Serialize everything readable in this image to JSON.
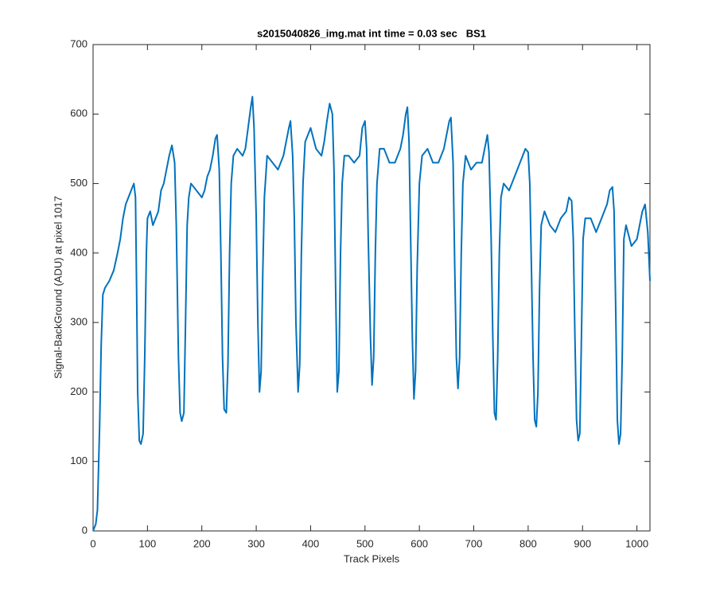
{
  "chart_data": {
    "type": "line",
    "title": "s2015040826_img.mat int time = 0.03 sec   BS1",
    "x_label": "Track Pixels",
    "y_label": "Signal-BackGround (ADU) at pixel 1017",
    "xlim": [
      0,
      1024
    ],
    "ylim": [
      0,
      700
    ],
    "xticks": [
      0,
      100,
      200,
      300,
      400,
      500,
      600,
      700,
      800,
      900,
      1000
    ],
    "yticks": [
      0,
      100,
      200,
      300,
      400,
      500,
      600,
      700
    ],
    "grid": false,
    "series": [
      {
        "name": "signal",
        "color": "#0072bd",
        "x": [
          0,
          5,
          8,
          12,
          15,
          18,
          22,
          30,
          38,
          45,
          50,
          55,
          60,
          65,
          70,
          75,
          78,
          80,
          82,
          85,
          88,
          92,
          95,
          98,
          100,
          105,
          110,
          115,
          120,
          125,
          130,
          135,
          140,
          145,
          150,
          153,
          157,
          160,
          163,
          167,
          170,
          173,
          176,
          180,
          190,
          200,
          205,
          210,
          215,
          220,
          225,
          228,
          232,
          235,
          238,
          241,
          245,
          248,
          251,
          254,
          258,
          265,
          275,
          280,
          285,
          290,
          293,
          296,
          300,
          303,
          306,
          309,
          312,
          315,
          320,
          330,
          340,
          350,
          355,
          360,
          363,
          367,
          370,
          373,
          377,
          380,
          383,
          386,
          390,
          400,
          410,
          420,
          425,
          430,
          435,
          440,
          443,
          446,
          449,
          452,
          455,
          458,
          462,
          470,
          480,
          490,
          495,
          500,
          503,
          506,
          510,
          513,
          516,
          519,
          522,
          527,
          535,
          545,
          555,
          565,
          570,
          575,
          578,
          581,
          584,
          587,
          590,
          593,
          596,
          600,
          605,
          615,
          625,
          635,
          645,
          650,
          655,
          658,
          662,
          665,
          668,
          671,
          674,
          677,
          680,
          685,
          695,
          705,
          715,
          720,
          725,
          728,
          732,
          735,
          738,
          741,
          744,
          747,
          750,
          755,
          765,
          775,
          785,
          790,
          795,
          800,
          803,
          806,
          809,
          812,
          815,
          818,
          821,
          824,
          830,
          840,
          850,
          860,
          870,
          875,
          880,
          883,
          886,
          889,
          892,
          895,
          898,
          901,
          905,
          915,
          925,
          935,
          945,
          950,
          955,
          958,
          961,
          964,
          967,
          970,
          973,
          976,
          980,
          990,
          1000,
          1005,
          1010,
          1015,
          1020,
          1024
        ],
        "values": [
          0,
          10,
          30,
          150,
          270,
          340,
          350,
          360,
          375,
          400,
          420,
          450,
          470,
          480,
          490,
          500,
          480,
          350,
          200,
          130,
          125,
          140,
          250,
          400,
          450,
          460,
          440,
          450,
          460,
          490,
          500,
          520,
          540,
          555,
          530,
          440,
          250,
          170,
          158,
          170,
          300,
          440,
          480,
          500,
          490,
          480,
          490,
          510,
          520,
          540,
          565,
          570,
          520,
          400,
          250,
          175,
          170,
          240,
          400,
          500,
          540,
          550,
          540,
          550,
          580,
          610,
          625,
          580,
          450,
          300,
          200,
          230,
          370,
          480,
          540,
          530,
          520,
          540,
          560,
          580,
          590,
          540,
          450,
          300,
          200,
          240,
          400,
          500,
          560,
          580,
          550,
          540,
          560,
          590,
          615,
          600,
          520,
          350,
          200,
          230,
          400,
          500,
          540,
          540,
          530,
          540,
          580,
          590,
          550,
          420,
          280,
          210,
          250,
          400,
          500,
          550,
          550,
          530,
          530,
          550,
          570,
          600,
          610,
          560,
          420,
          280,
          190,
          230,
          380,
          500,
          540,
          550,
          530,
          530,
          550,
          570,
          590,
          595,
          530,
          380,
          250,
          205,
          250,
          400,
          500,
          540,
          520,
          530,
          530,
          550,
          570,
          545,
          420,
          280,
          170,
          160,
          250,
          400,
          480,
          500,
          490,
          510,
          530,
          540,
          550,
          545,
          500,
          380,
          250,
          160,
          150,
          200,
          350,
          440,
          460,
          440,
          430,
          450,
          460,
          480,
          475,
          420,
          280,
          160,
          130,
          140,
          280,
          420,
          450,
          450,
          430,
          450,
          470,
          490,
          495,
          460,
          320,
          160,
          125,
          140,
          250,
          420,
          440,
          410,
          420,
          440,
          460,
          470,
          430,
          360
        ]
      }
    ]
  }
}
